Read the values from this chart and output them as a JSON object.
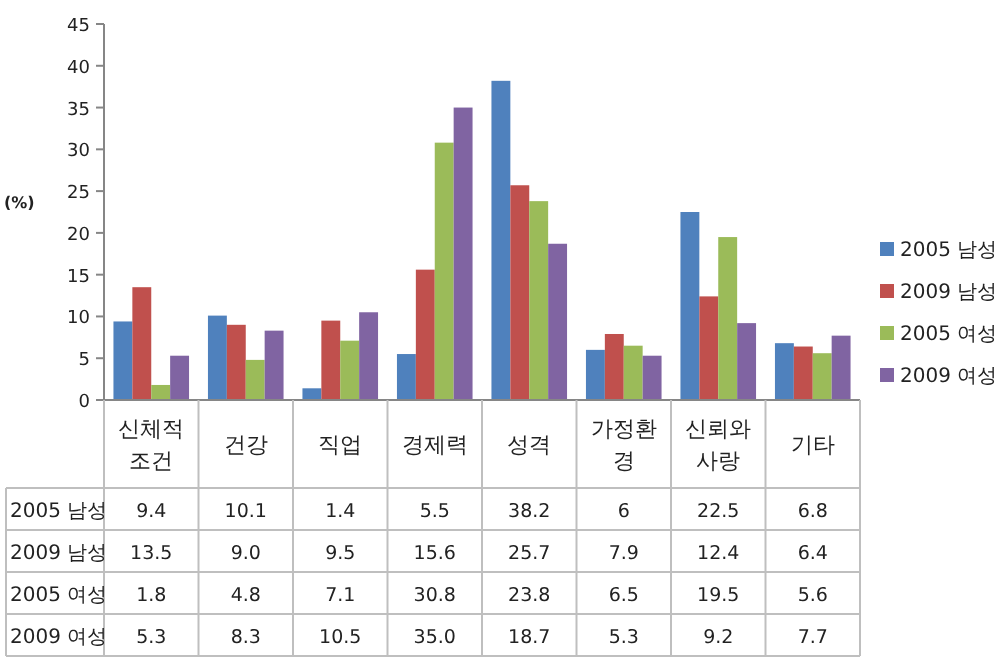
{
  "chart_data": {
    "type": "bar",
    "ylabel": "(%)",
    "categories": [
      "신체적 조건",
      "건강",
      "직업",
      "경제력",
      "성격",
      "가정환경",
      "신뢰와 사랑",
      "기타"
    ],
    "ylim": [
      0,
      45
    ],
    "yticks": [
      0,
      5,
      10,
      15,
      20,
      25,
      30,
      35,
      40,
      45
    ],
    "legend": "right",
    "series": [
      {
        "name": "2005 남성",
        "color": "#4f81bd",
        "values": [
          9.4,
          10.1,
          1.4,
          5.5,
          38.2,
          6,
          22.5,
          6.8
        ],
        "value_labels": [
          "9.4",
          "10.1",
          "1.4",
          "5.5",
          "38.2",
          "6",
          "22.5",
          "6.8"
        ]
      },
      {
        "name": "2009 남성",
        "color": "#c0504d",
        "values": [
          13.5,
          9.0,
          9.5,
          15.6,
          25.7,
          7.9,
          12.4,
          6.4
        ],
        "value_labels": [
          "13.5",
          "9.0",
          "9.5",
          "15.6",
          "25.7",
          "7.9",
          "12.4",
          "6.4"
        ]
      },
      {
        "name": "2005 여성",
        "color": "#9bbb59",
        "values": [
          1.8,
          4.8,
          7.1,
          30.8,
          23.8,
          6.5,
          19.5,
          5.6
        ],
        "value_labels": [
          "1.8",
          "4.8",
          "7.1",
          "30.8",
          "23.8",
          "6.5",
          "19.5",
          "5.6"
        ]
      },
      {
        "name": "2009 여성",
        "color": "#8064a2",
        "values": [
          5.3,
          8.3,
          10.5,
          35.0,
          18.7,
          5.3,
          9.2,
          7.7
        ],
        "value_labels": [
          "5.3",
          "8.3",
          "10.5",
          "35.0",
          "18.7",
          "5.3",
          "9.2",
          "7.7"
        ]
      }
    ]
  }
}
